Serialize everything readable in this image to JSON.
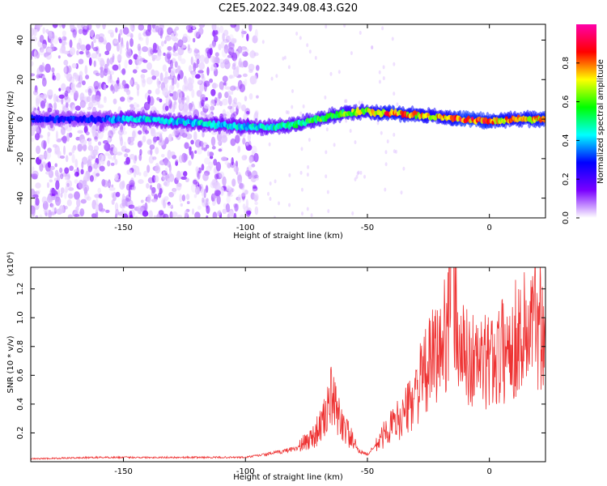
{
  "title": "C2E5.2022.349.08.43.G20",
  "colors": {
    "snr_line": "#ee3333",
    "signal_ridge": "#00e0a0",
    "noise_scatter": "#7a22ff",
    "axis": "#000000"
  },
  "chart_data": [
    {
      "type": "heatmap",
      "name": "spectrogram",
      "xlabel": "Height of straight line (km)",
      "ylabel": "Frequency (Hz)",
      "xlim": [
        -188,
        23
      ],
      "ylim": [
        -50,
        48
      ],
      "xticks": [
        -150,
        -100,
        -50,
        0
      ],
      "yticks": [
        -40,
        -20,
        0,
        20,
        40
      ],
      "colorbar": {
        "label": "Normalized spectral amplitude",
        "range": [
          0,
          1
        ],
        "ticks": [
          "0.0",
          "0.2",
          "0.4",
          "0.6",
          "0.8"
        ],
        "colormap": [
          "#ffffff",
          "#7a00ff",
          "#0000ff",
          "#00ffff",
          "#00ff00",
          "#ffff00",
          "#ff0000",
          "#ff00aa"
        ]
      },
      "signal_ridge": {
        "x": [
          -188,
          -160,
          -150,
          -140,
          -120,
          -100,
          -90,
          -80,
          -70,
          -60,
          -50,
          -45,
          -40,
          -30,
          -20,
          -10,
          0,
          10,
          23
        ],
        "y": [
          0,
          0,
          0,
          0,
          -2,
          -4,
          -4,
          -3,
          0,
          3,
          4,
          3,
          3,
          2,
          1,
          0,
          -1,
          0,
          0
        ],
        "amplitude": [
          0.3,
          0.3,
          0.45,
          0.45,
          0.45,
          0.45,
          0.5,
          0.55,
          0.6,
          0.65,
          0.7,
          0.8,
          0.85,
          0.8,
          0.75,
          0.9,
          0.85,
          0.8,
          0.85
        ]
      },
      "broadband_noise_x_range": [
        -188,
        -95
      ]
    },
    {
      "type": "line",
      "name": "snr",
      "xlabel": "Height of straight line (km)",
      "ylabel": "SNR (10 * v/v)",
      "multiplier": "(x10⁴)",
      "xlim": [
        -188,
        23
      ],
      "ylim": [
        0,
        1.35
      ],
      "xticks": [
        -150,
        -100,
        -50,
        0
      ],
      "yticks": [
        0.2,
        0.4,
        0.6,
        0.8,
        1.0,
        1.2
      ],
      "series": [
        {
          "x": [
            -188,
            -160,
            -140,
            -120,
            -100,
            -92,
            -85,
            -78,
            -72,
            -68,
            -65,
            -62,
            -58,
            -54,
            -50,
            -46,
            -42,
            -38,
            -34,
            -30,
            -26,
            -22,
            -19,
            -17,
            -15,
            -13,
            -10,
            -6,
            -2,
            0,
            4,
            8,
            12,
            16,
            20,
            23
          ],
          "y": [
            0.02,
            0.03,
            0.03,
            0.03,
            0.03,
            0.05,
            0.07,
            0.1,
            0.18,
            0.28,
            0.45,
            0.32,
            0.2,
            0.08,
            0.05,
            0.12,
            0.22,
            0.28,
            0.35,
            0.5,
            0.62,
            0.75,
            0.78,
            1.1,
            1.32,
            0.85,
            0.72,
            0.7,
            0.68,
            0.7,
            0.75,
            0.8,
            0.88,
            0.92,
            1.0,
            0.96
          ],
          "noise": 0.5
        }
      ]
    }
  ]
}
